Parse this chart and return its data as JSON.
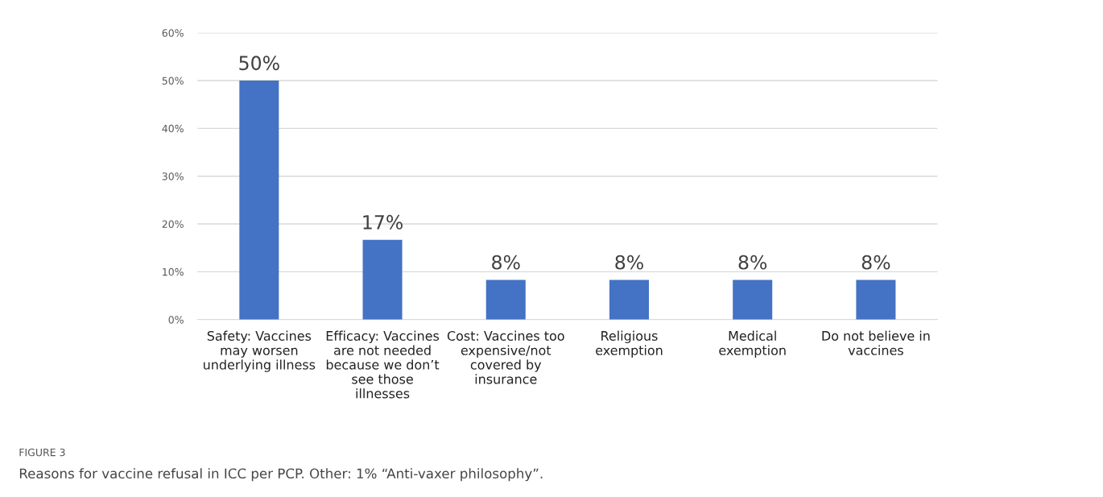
{
  "chart_data": {
    "type": "bar",
    "categories": [
      "Safety: Vaccines\nmay worsen\nunderlying illness",
      "Efficacy: Vaccines\nare not needed\nbecause we don’t\nsee those\nillnesses",
      "Cost: Vaccines too\nexpensive/not\ncovered by\ninsurance",
      "Religious\nexemption",
      "Medical\nexemption",
      "Do not believe in\nvaccines"
    ],
    "values": [
      50,
      16.7,
      8.3,
      8.3,
      8.3,
      8.3
    ],
    "value_labels": [
      "50%",
      "17%",
      "8%",
      "8%",
      "8%",
      "8%"
    ],
    "color": "#4472c4",
    "ylim": [
      0,
      60
    ],
    "yticks": [
      {
        "value": 0,
        "label": "0%"
      },
      {
        "value": 10,
        "label": "10%"
      },
      {
        "value": 20,
        "label": "20%"
      },
      {
        "value": 30,
        "label": "30%"
      },
      {
        "value": 40,
        "label": "40%"
      },
      {
        "value": 50,
        "label": "50%"
      },
      {
        "value": 60,
        "label": "60%"
      }
    ],
    "grid": "y",
    "legend": false,
    "annotations": [
      "FIGURE 3",
      "Reasons for vaccine refusal in ICC per PCP. Other: 1% “Anti-vaxer philosophy”."
    ]
  }
}
